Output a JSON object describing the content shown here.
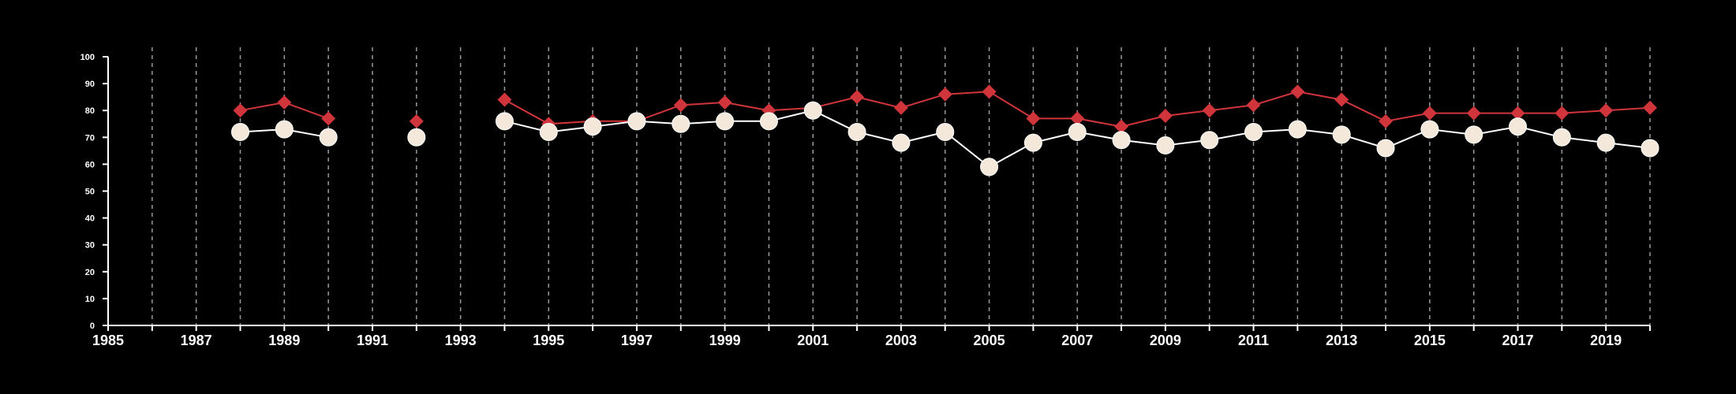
{
  "chart_data": {
    "type": "line",
    "title": "",
    "xlabel": "",
    "ylabel": "",
    "xlim": [
      1985,
      2020
    ],
    "ylim": [
      0,
      100
    ],
    "x_ticks": [
      "1985",
      "1987",
      "1989",
      "1991",
      "1993",
      "1995",
      "1997",
      "1999",
      "2001",
      "2003",
      "2005",
      "2007",
      "2009",
      "2011",
      "2013",
      "2015",
      "2017",
      "2019"
    ],
    "y_ticks": [
      "0",
      "10",
      "20",
      "30",
      "40",
      "50",
      "60",
      "70",
      "80",
      "90",
      "100"
    ],
    "grid": "vertical dashed lines at every year",
    "colors": {
      "background": "#000000",
      "axis": "#ffffff",
      "grid": "#9a9a9a",
      "red_series": "#d0353c",
      "light_series_fill": "#f3e8d9",
      "light_series_line": "#ffffff"
    },
    "series": [
      {
        "color": "#d0353c",
        "marker": "diamond",
        "points": [
          [
            1988,
            80
          ],
          [
            1989,
            83
          ],
          [
            1990,
            77
          ],
          [
            1992,
            76
          ],
          [
            1994,
            84
          ],
          [
            1995,
            75
          ],
          [
            1996,
            76
          ],
          [
            1997,
            76
          ],
          [
            1998,
            82
          ],
          [
            1999,
            83
          ],
          [
            2000,
            80
          ],
          [
            2001,
            81
          ],
          [
            2002,
            85
          ],
          [
            2003,
            81
          ],
          [
            2004,
            86
          ],
          [
            2005,
            87
          ],
          [
            2006,
            77
          ],
          [
            2007,
            77
          ],
          [
            2008,
            74
          ],
          [
            2009,
            78
          ],
          [
            2010,
            80
          ],
          [
            2011,
            82
          ],
          [
            2012,
            87
          ],
          [
            2013,
            84
          ],
          [
            2014,
            76
          ],
          [
            2015,
            79
          ],
          [
            2016,
            79
          ],
          [
            2017,
            79
          ],
          [
            2018,
            79
          ],
          [
            2019,
            80
          ],
          [
            2020,
            81
          ]
        ]
      },
      {
        "color": "#f3e8d9",
        "marker": "circle",
        "points": [
          [
            1988,
            72
          ],
          [
            1989,
            73
          ],
          [
            1990,
            70
          ],
          [
            1992,
            70
          ],
          [
            1994,
            76
          ],
          [
            1995,
            72
          ],
          [
            1996,
            74
          ],
          [
            1997,
            76
          ],
          [
            1998,
            75
          ],
          [
            1999,
            76
          ],
          [
            2000,
            76
          ],
          [
            2001,
            80
          ],
          [
            2002,
            72
          ],
          [
            2003,
            68
          ],
          [
            2004,
            72
          ],
          [
            2005,
            59
          ],
          [
            2006,
            68
          ],
          [
            2007,
            72
          ],
          [
            2008,
            69
          ],
          [
            2009,
            67
          ],
          [
            2010,
            69
          ],
          [
            2011,
            72
          ],
          [
            2012,
            73
          ],
          [
            2013,
            71
          ],
          [
            2014,
            66
          ],
          [
            2015,
            73
          ],
          [
            2016,
            71
          ],
          [
            2017,
            74
          ],
          [
            2018,
            70
          ],
          [
            2019,
            68
          ],
          [
            2020,
            66
          ]
        ]
      }
    ]
  }
}
